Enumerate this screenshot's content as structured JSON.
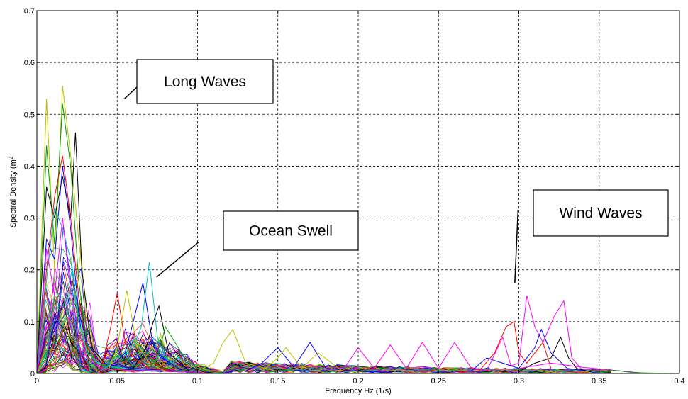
{
  "chart_data": {
    "type": "line",
    "title": "",
    "xlabel": "Frequency Hz (1/s)",
    "ylabel_text": "Spectral Density (m",
    "ylabel_sup": "2",
    "xlim": [
      0,
      0.4
    ],
    "ylim": [
      0,
      0.7
    ],
    "grid": true,
    "x_ticks": [
      0,
      0.05,
      0.1,
      0.15,
      0.2,
      0.25,
      0.3,
      0.35,
      0.4
    ],
    "x_tick_labels": [
      "0",
      "0.05",
      "0.1",
      "0.15",
      "0.2",
      "0.25",
      "0.3",
      "0.35",
      "0.4"
    ],
    "y_ticks": [
      0,
      0.1,
      0.2,
      0.3,
      0.4,
      0.5,
      0.6,
      0.7
    ],
    "y_tick_labels": [
      "0",
      "0.1",
      "0.2",
      "0.3",
      "0.4",
      "0.5",
      "0.6",
      "0.7"
    ],
    "series_colors": [
      "#0000ff",
      "#ff0000",
      "#00a000",
      "#ff00ff",
      "#00bfbf",
      "#bfbf00",
      "#000000"
    ],
    "series": [
      {
        "color": "#bfbf00",
        "x": [
          0,
          0.006,
          0.011,
          0.016,
          0.021,
          0.026,
          0.031,
          0.036,
          0.041,
          0.05,
          0.06,
          0.07,
          0.08,
          0.1
        ],
        "y": [
          0,
          0.53,
          0.2,
          0.555,
          0.42,
          0.26,
          0.12,
          0.04,
          0.02,
          0.015,
          0.01,
          0.008,
          0.004,
          0.002
        ]
      },
      {
        "color": "#00a000",
        "x": [
          0,
          0.006,
          0.011,
          0.016,
          0.021,
          0.026,
          0.031,
          0.036,
          0.05,
          0.07,
          0.1
        ],
        "y": [
          0,
          0.44,
          0.25,
          0.52,
          0.4,
          0.18,
          0.06,
          0.02,
          0.01,
          0.006,
          0.002
        ]
      },
      {
        "color": "#000000",
        "x": [
          0,
          0.006,
          0.011,
          0.016,
          0.021,
          0.024,
          0.028,
          0.034,
          0.045,
          0.07,
          0.1
        ],
        "y": [
          0,
          0.36,
          0.3,
          0.38,
          0.3,
          0.465,
          0.2,
          0.05,
          0.01,
          0.005,
          0.002
        ]
      },
      {
        "color": "#ff0000",
        "x": [
          0,
          0.006,
          0.011,
          0.016,
          0.021,
          0.026,
          0.031,
          0.04,
          0.06,
          0.1
        ],
        "y": [
          0,
          0.2,
          0.34,
          0.42,
          0.3,
          0.15,
          0.05,
          0.02,
          0.01,
          0.002
        ]
      },
      {
        "color": "#0000ff",
        "x": [
          0,
          0.006,
          0.011,
          0.016,
          0.021,
          0.026,
          0.031,
          0.04,
          0.06,
          0.1
        ],
        "y": [
          0,
          0.26,
          0.22,
          0.4,
          0.28,
          0.12,
          0.06,
          0.02,
          0.01,
          0.002
        ]
      },
      {
        "color": "#00bfbf",
        "x": [
          0,
          0.006,
          0.011,
          0.016,
          0.021,
          0.026,
          0.031,
          0.04,
          0.06,
          0.1
        ],
        "y": [
          0,
          0.18,
          0.32,
          0.28,
          0.22,
          0.1,
          0.04,
          0.015,
          0.008,
          0.002
        ]
      },
      {
        "color": "#ff00ff",
        "x": [
          0,
          0.006,
          0.011,
          0.016,
          0.021,
          0.026,
          0.031,
          0.04,
          0.06,
          0.1
        ],
        "y": [
          0,
          0.24,
          0.15,
          0.3,
          0.16,
          0.08,
          0.03,
          0.01,
          0.006,
          0.002
        ]
      },
      {
        "color": "#00bfbf",
        "x": [
          0.04,
          0.05,
          0.06,
          0.065,
          0.07,
          0.075,
          0.08,
          0.09,
          0.1
        ],
        "y": [
          0.005,
          0.03,
          0.05,
          0.09,
          0.215,
          0.07,
          0.03,
          0.01,
          0.004
        ]
      },
      {
        "color": "#0000ff",
        "x": [
          0.045,
          0.055,
          0.06,
          0.066,
          0.072,
          0.078,
          0.09
        ],
        "y": [
          0.01,
          0.04,
          0.1,
          0.175,
          0.06,
          0.03,
          0.006
        ]
      },
      {
        "color": "#ff0000",
        "x": [
          0.04,
          0.046,
          0.05,
          0.055,
          0.06,
          0.07,
          0.085
        ],
        "y": [
          0.01,
          0.09,
          0.155,
          0.06,
          0.03,
          0.01,
          0.004
        ]
      },
      {
        "color": "#bfbf00",
        "x": [
          0.045,
          0.05,
          0.056,
          0.062,
          0.07,
          0.08
        ],
        "y": [
          0.01,
          0.05,
          0.16,
          0.06,
          0.02,
          0.004
        ]
      },
      {
        "color": "#000000",
        "x": [
          0.06,
          0.068,
          0.072,
          0.076,
          0.082,
          0.095
        ],
        "y": [
          0.01,
          0.05,
          0.095,
          0.13,
          0.04,
          0.005
        ]
      },
      {
        "color": "#00a000",
        "x": [
          0.07,
          0.075,
          0.08,
          0.09,
          0.1,
          0.11
        ],
        "y": [
          0.01,
          0.03,
          0.09,
          0.04,
          0.01,
          0.002
        ]
      },
      {
        "color": "#bfbf00",
        "x": [
          0.1,
          0.11,
          0.116,
          0.122,
          0.13,
          0.15
        ],
        "y": [
          0.005,
          0.02,
          0.06,
          0.085,
          0.02,
          0.004
        ]
      },
      {
        "color": "#0000ff",
        "x": [
          0.13,
          0.14,
          0.15,
          0.16,
          0.17,
          0.18,
          0.2,
          0.22
        ],
        "y": [
          0.005,
          0.02,
          0.05,
          0.012,
          0.06,
          0.01,
          0.004,
          0.002
        ]
      },
      {
        "color": "#ff00ff",
        "x": [
          0.19,
          0.2,
          0.21,
          0.22,
          0.23,
          0.24,
          0.25,
          0.26,
          0.27,
          0.28
        ],
        "y": [
          0.004,
          0.05,
          0.01,
          0.055,
          0.01,
          0.06,
          0.01,
          0.06,
          0.012,
          0.005
        ]
      },
      {
        "color": "#bfbf00",
        "x": [
          0.14,
          0.15,
          0.155,
          0.165,
          0.175,
          0.19,
          0.205
        ],
        "y": [
          0.004,
          0.03,
          0.05,
          0.01,
          0.04,
          0.005,
          0.002
        ]
      },
      {
        "color": "#ff00ff",
        "x": [
          0.28,
          0.29,
          0.295,
          0.3,
          0.305,
          0.31,
          0.315,
          0.322,
          0.328,
          0.333,
          0.34
        ],
        "y": [
          0.005,
          0.07,
          0.015,
          0.02,
          0.15,
          0.09,
          0.06,
          0.11,
          0.14,
          0.03,
          0.005
        ]
      },
      {
        "color": "#ff0000",
        "x": [
          0.275,
          0.285,
          0.292,
          0.297,
          0.3,
          0.305,
          0.315,
          0.32
        ],
        "y": [
          0.004,
          0.04,
          0.09,
          0.1,
          0.04,
          0.02,
          0.06,
          0.01
        ]
      },
      {
        "color": "#0000ff",
        "x": [
          0.27,
          0.28,
          0.29,
          0.3,
          0.31,
          0.314,
          0.32,
          0.33,
          0.345
        ],
        "y": [
          0.004,
          0.03,
          0.02,
          0.01,
          0.05,
          0.085,
          0.04,
          0.01,
          0.004
        ]
      },
      {
        "color": "#000000",
        "x": [
          0.3,
          0.31,
          0.32,
          0.326,
          0.331,
          0.336,
          0.345
        ],
        "y": [
          0.004,
          0.02,
          0.03,
          0.07,
          0.03,
          0.01,
          0.003
        ]
      },
      {
        "color": "#ff00ff",
        "x": [
          0.3,
          0.32,
          0.34,
          0.36,
          0.38
        ],
        "y": [
          0.01,
          0.02,
          0.012,
          0.006,
          0.0
        ]
      },
      {
        "color": "#00a000",
        "x": [
          0.35,
          0.36,
          0.37,
          0.38,
          0.4
        ],
        "y": [
          0.003,
          0.006,
          0.002,
          0.001,
          0.0
        ]
      }
    ],
    "annotations": [
      {
        "label": "Long Waves",
        "pointer_from": [
          0.0545,
          0.53
        ],
        "pointer_to": [
          0.0805,
          0.605
        ]
      },
      {
        "label": "Ocean Swell",
        "pointer_from": [
          0.0745,
          0.186
        ],
        "pointer_to": [
          0.1005,
          0.253
        ]
      },
      {
        "label": "Wind Waves",
        "pointer_from": [
          0.2975,
          0.175
        ],
        "pointer_to": [
          0.2995,
          0.315
        ]
      }
    ]
  }
}
